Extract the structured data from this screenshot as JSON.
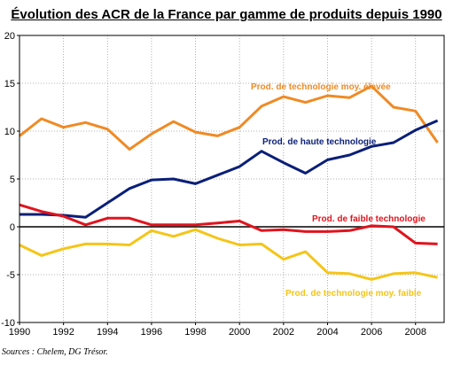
{
  "chart_data": {
    "type": "line",
    "title": "Évolution des ACR de la France par gamme de produits depuis 1990",
    "xlabel": "",
    "ylabel": "",
    "x": [
      1990,
      1991,
      1992,
      1993,
      1994,
      1995,
      1996,
      1997,
      1998,
      1999,
      2000,
      2001,
      2002,
      2003,
      2004,
      2005,
      2006,
      2007,
      2008,
      2009
    ],
    "xlim": [
      1990,
      2009.3
    ],
    "ylim": [
      -10,
      20
    ],
    "x_ticks": [
      "1990",
      "1992",
      "1994",
      "1996",
      "1998",
      "2000",
      "2002",
      "2004",
      "2006",
      "2008"
    ],
    "y_ticks": [
      "20",
      "15",
      "10",
      "5",
      "0",
      "-5",
      "-10"
    ],
    "grid": "dotted vertical and horizontal",
    "series": [
      {
        "name": "Prod. de technologie moy. élevée",
        "color": "#f08a24",
        "values": [
          9.5,
          11.3,
          10.4,
          10.9,
          10.2,
          8.1,
          9.7,
          11.0,
          9.9,
          9.5,
          10.4,
          12.6,
          13.6,
          13.0,
          13.7,
          13.5,
          14.7,
          12.5,
          12.1,
          8.8
        ]
      },
      {
        "name": "Prod. de haute technologie",
        "color": "#0a1f78",
        "values": [
          1.3,
          1.3,
          1.2,
          1.0,
          2.5,
          4.0,
          4.9,
          5.0,
          4.5,
          5.4,
          6.3,
          7.9,
          6.7,
          5.6,
          7.0,
          7.5,
          8.4,
          8.8,
          10.1,
          11.1
        ]
      },
      {
        "name": "Prod. de faible technologie",
        "color": "#e0141e",
        "values": [
          2.3,
          1.6,
          1.1,
          0.2,
          0.9,
          0.9,
          0.2,
          0.2,
          0.2,
          0.4,
          0.6,
          -0.4,
          -0.3,
          -0.5,
          -0.5,
          -0.4,
          0.1,
          0.0,
          -1.7,
          -1.8
        ]
      },
      {
        "name": "Prod. de technologie moy. faible",
        "color": "#f5c518",
        "values": [
          -1.9,
          -3.0,
          -2.3,
          -1.8,
          -1.8,
          -1.9,
          -0.4,
          -1.0,
          -0.3,
          -1.2,
          -1.9,
          -1.8,
          -3.4,
          -2.6,
          -4.8,
          -4.9,
          -5.5,
          -4.9,
          -4.8,
          -5.3
        ]
      }
    ]
  },
  "source": "Sources : Chelem, DG Trésor."
}
